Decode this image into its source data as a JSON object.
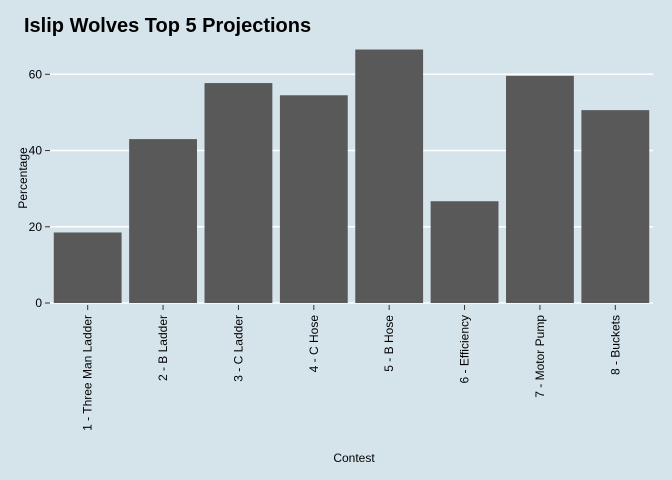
{
  "chart_data": {
    "type": "bar",
    "title": "Islip Wolves Top 5 Projections",
    "xlabel": "Contest",
    "ylabel": "Percentage",
    "categories": [
      "1 - Three Man Ladder",
      "2 - B Ladder",
      "3 - C Ladder",
      "4 - C Hose",
      "5 - B Hose",
      "6 - Efficiency",
      "7 - Motor Pump",
      "8 - Buckets"
    ],
    "values": [
      18.5,
      43,
      57.7,
      54.5,
      66.5,
      26.7,
      59.6,
      50.6
    ],
    "ylim": [
      0,
      69
    ],
    "yticks": [
      0,
      20,
      40,
      60
    ],
    "grid": true,
    "legend": "none",
    "colors": {
      "background": "#d5e4eb",
      "bar": "#595959",
      "grid": "#ffffff"
    }
  }
}
